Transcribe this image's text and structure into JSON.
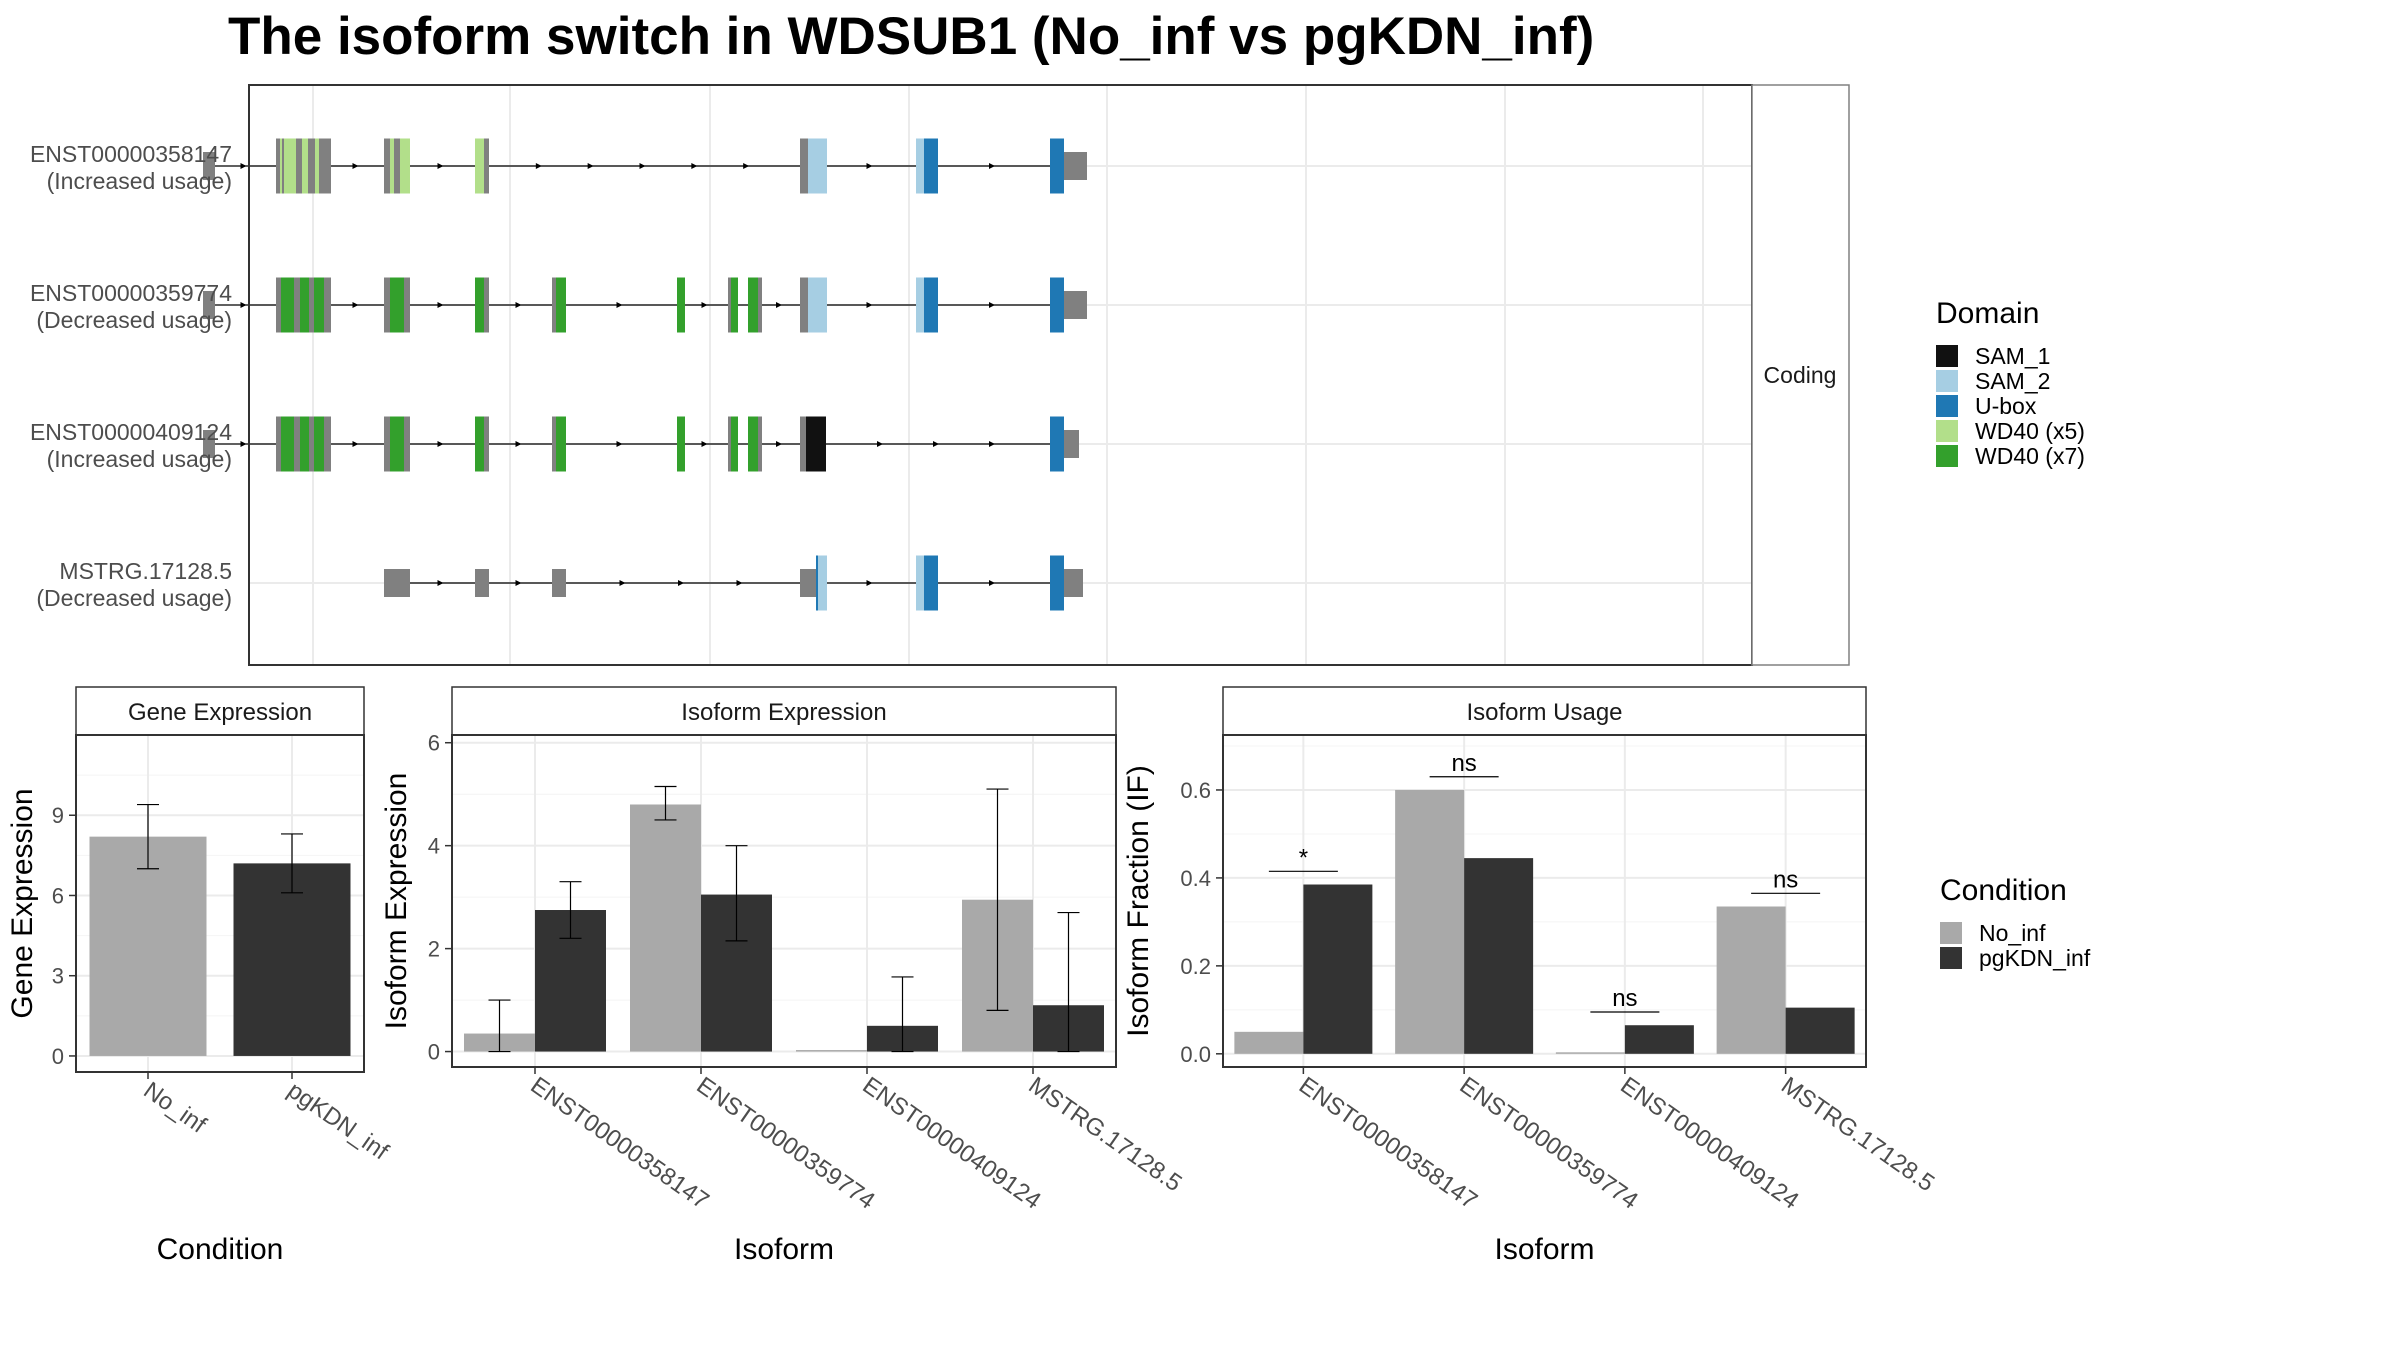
{
  "title": "The isoform switch in WDSUB1 (No_inf vs pgKDN_inf)",
  "colors": {
    "SAM_1": "#111111",
    "SAM_2": "#a6cee3",
    "U-box": "#1f78b4",
    "WD40 (x5)": "#b2df8a",
    "WD40 (x7)": "#33a02c",
    "non_domain": "#808080",
    "No_inf": "#a9a9a9",
    "pgKDN_inf": "#333333"
  },
  "chart_data": [
    {
      "type": "table",
      "name": "transcript-structure",
      "facet_label": "Coding",
      "domain_legend": {
        "title": "Domain",
        "entries": [
          "SAM_1",
          "SAM_2",
          "U-box",
          "WD40 (x5)",
          "WD40 (x7)"
        ]
      },
      "transcripts": [
        {
          "id": "ENST00000358147",
          "note": "(Increased usage)",
          "exons": [
            {
              "s": 203,
              "e": 215,
              "tall": false
            },
            {
              "s": 276,
              "e": 331,
              "tall": true,
              "domains": [
                [
                  "WD40 (x5)",
                  280,
                  282
                ],
                [
                  "WD40 (x5)",
                  284,
                  296
                ],
                [
                  "WD40 (x5)",
                  302,
                  308
                ],
                [
                  "WD40 (x5)",
                  315,
                  319
                ]
              ]
            },
            {
              "s": 384,
              "e": 410,
              "tall": true,
              "domains": [
                [
                  "WD40 (x5)",
                  390,
                  394
                ],
                [
                  "WD40 (x5)",
                  400,
                  410
                ]
              ]
            },
            {
              "s": 475,
              "e": 489,
              "tall": true,
              "domains": [
                [
                  "WD40 (x5)",
                  475,
                  484
                ]
              ]
            },
            {
              "s": 800,
              "e": 827,
              "tall": true,
              "domains": [
                [
                  "SAM_2",
                  808,
                  827
                ]
              ]
            },
            {
              "s": 916,
              "e": 938,
              "tall": true,
              "domains": [
                [
                  "SAM_2",
                  916,
                  924
                ],
                [
                  "U-box",
                  924,
                  929
                ],
                [
                  "U-box",
                  929,
                  938
                ]
              ]
            },
            {
              "s": 1050,
              "e": 1087,
              "tall": true,
              "utr_from": 1064,
              "domains": [
                [
                  "U-box",
                  1050,
                  1064
                ]
              ]
            }
          ]
        },
        {
          "id": "ENST00000359774",
          "note": "(Decreased usage)",
          "exons": [
            {
              "s": 203,
              "e": 215,
              "tall": false
            },
            {
              "s": 276,
              "e": 331,
              "tall": true,
              "domains": [
                [
                  "WD40 (x7)",
                  281,
                  294
                ],
                [
                  "WD40 (x7)",
                  300,
                  309
                ],
                [
                  "WD40 (x7)",
                  314,
                  324
                ]
              ]
            },
            {
              "s": 384,
              "e": 410,
              "tall": true,
              "domains": [
                [
                  "WD40 (x7)",
                  390,
                  404
                ]
              ]
            },
            {
              "s": 475,
              "e": 489,
              "tall": true,
              "domains": [
                [
                  "WD40 (x7)",
                  475,
                  484
                ]
              ]
            },
            {
              "s": 552,
              "e": 566,
              "tall": true,
              "domains": [
                [
                  "WD40 (x7)",
                  556,
                  566
                ]
              ]
            },
            {
              "s": 677,
              "e": 685,
              "tall": true,
              "domains": [
                [
                  "WD40 (x7)",
                  677,
                  685
                ]
              ]
            },
            {
              "s": 728,
              "e": 738,
              "tall": true,
              "domains": [
                [
                  "WD40 (x7)",
                  731,
                  738
                ]
              ]
            },
            {
              "s": 748,
              "e": 762,
              "tall": true,
              "domains": [
                [
                  "WD40 (x7)",
                  748,
                  758
                ]
              ]
            },
            {
              "s": 800,
              "e": 827,
              "tall": true,
              "domains": [
                [
                  "SAM_2",
                  808,
                  827
                ]
              ]
            },
            {
              "s": 916,
              "e": 938,
              "tall": true,
              "domains": [
                [
                  "SAM_2",
                  916,
                  924
                ],
                [
                  "U-box",
                  924,
                  929
                ],
                [
                  "U-box",
                  929,
                  938
                ]
              ]
            },
            {
              "s": 1050,
              "e": 1087,
              "tall": true,
              "utr_from": 1064,
              "domains": [
                [
                  "U-box",
                  1050,
                  1064
                ]
              ]
            }
          ]
        },
        {
          "id": "ENST00000409124",
          "note": "(Increased usage)",
          "exons": [
            {
              "s": 203,
              "e": 215,
              "tall": false
            },
            {
              "s": 276,
              "e": 331,
              "tall": true,
              "domains": [
                [
                  "WD40 (x7)",
                  281,
                  294
                ],
                [
                  "WD40 (x7)",
                  300,
                  309
                ],
                [
                  "WD40 (x7)",
                  314,
                  324
                ]
              ]
            },
            {
              "s": 384,
              "e": 410,
              "tall": true,
              "domains": [
                [
                  "WD40 (x7)",
                  390,
                  404
                ]
              ]
            },
            {
              "s": 475,
              "e": 489,
              "tall": true,
              "domains": [
                [
                  "WD40 (x7)",
                  475,
                  484
                ]
              ]
            },
            {
              "s": 552,
              "e": 566,
              "tall": true,
              "domains": [
                [
                  "WD40 (x7)",
                  556,
                  566
                ]
              ]
            },
            {
              "s": 677,
              "e": 685,
              "tall": true,
              "domains": [
                [
                  "WD40 (x7)",
                  677,
                  685
                ]
              ]
            },
            {
              "s": 728,
              "e": 738,
              "tall": true,
              "domains": [
                [
                  "WD40 (x7)",
                  731,
                  738
                ]
              ]
            },
            {
              "s": 748,
              "e": 762,
              "tall": true,
              "domains": [
                [
                  "WD40 (x7)",
                  748,
                  758
                ]
              ]
            },
            {
              "s": 800,
              "e": 826,
              "tall": true,
              "domains": [
                [
                  "SAM_1",
                  806,
                  826
                ]
              ]
            },
            {
              "s": 1050,
              "e": 1079,
              "tall": true,
              "utr_from": 1064,
              "domains": [
                [
                  "U-box",
                  1050,
                  1064
                ]
              ]
            }
          ]
        },
        {
          "id": "MSTRG.17128.5",
          "note": "(Decreased usage)",
          "exons": [
            {
              "s": 384,
              "e": 410,
              "tall": false
            },
            {
              "s": 475,
              "e": 489,
              "tall": false
            },
            {
              "s": 552,
              "e": 566,
              "tall": false
            },
            {
              "s": 800,
              "e": 827,
              "tall": true,
              "utr_to": 816,
              "domains": [
                [
                  "U-box",
                  816,
                  818
                ],
                [
                  "SAM_2",
                  818,
                  827
                ]
              ]
            },
            {
              "s": 916,
              "e": 938,
              "tall": true,
              "domains": [
                [
                  "SAM_2",
                  916,
                  924
                ],
                [
                  "U-box",
                  924,
                  929
                ],
                [
                  "U-box",
                  929,
                  938
                ]
              ]
            },
            {
              "s": 1050,
              "e": 1083,
              "tall": true,
              "utr_from": 1064,
              "domains": [
                [
                  "U-box",
                  1050,
                  1064
                ]
              ]
            }
          ]
        }
      ]
    },
    {
      "type": "bar",
      "name": "gene-expression",
      "panel_title": "Gene Expression",
      "xlabel": "Condition",
      "ylabel": "Gene Expression",
      "categories": [
        "No_inf",
        "pgKDN_inf"
      ],
      "values": [
        8.2,
        7.2
      ],
      "errors": [
        [
          7.0,
          9.4
        ],
        [
          6.1,
          8.3
        ]
      ],
      "ylim": [
        -0.6,
        12
      ],
      "yticks": [
        0,
        3,
        6,
        9
      ]
    },
    {
      "type": "bar",
      "name": "isoform-expression",
      "panel_title": "Isoform Expression",
      "xlabel": "Isoform",
      "ylabel": "Isoform Expression",
      "categories": [
        "ENST00000358147",
        "ENST00000359774",
        "ENST00000409124",
        "MSTRG.17128.5"
      ],
      "series": [
        {
          "name": "No_inf",
          "values": [
            0.35,
            4.8,
            0.0,
            2.95
          ],
          "errors": [
            [
              0.0,
              1.0
            ],
            [
              4.5,
              5.15
            ],
            null,
            [
              0.8,
              5.1
            ]
          ]
        },
        {
          "name": "pgKDN_inf",
          "values": [
            2.75,
            3.05,
            0.5,
            0.9
          ],
          "errors": [
            [
              2.2,
              3.3
            ],
            [
              2.15,
              4.0
            ],
            [
              0.0,
              1.45
            ],
            [
              0.0,
              2.7
            ]
          ]
        }
      ],
      "ylim": [
        -0.3,
        6.15
      ],
      "yticks": [
        0,
        2,
        4,
        6
      ]
    },
    {
      "type": "bar",
      "name": "isoform-usage",
      "panel_title": "Isoform Usage",
      "xlabel": "Isoform",
      "ylabel": "Isoform Fraction (IF)",
      "categories": [
        "ENST00000358147",
        "ENST00000359774",
        "ENST00000409124",
        "MSTRG.17128.5"
      ],
      "series": [
        {
          "name": "No_inf",
          "values": [
            0.05,
            0.6,
            0.0,
            0.335
          ]
        },
        {
          "name": "pgKDN_inf",
          "values": [
            0.385,
            0.445,
            0.065,
            0.105
          ]
        }
      ],
      "significance": [
        "*",
        "ns",
        "ns",
        "ns"
      ],
      "ylim": [
        -0.03,
        0.725
      ],
      "yticks": [
        0.0,
        0.2,
        0.4,
        0.6
      ],
      "ytick_labels": [
        "0.0",
        "0.2",
        "0.4",
        "0.6"
      ],
      "legend": {
        "title": "Condition",
        "entries": [
          "No_inf",
          "pgKDN_inf"
        ],
        "position": "right"
      }
    }
  ]
}
